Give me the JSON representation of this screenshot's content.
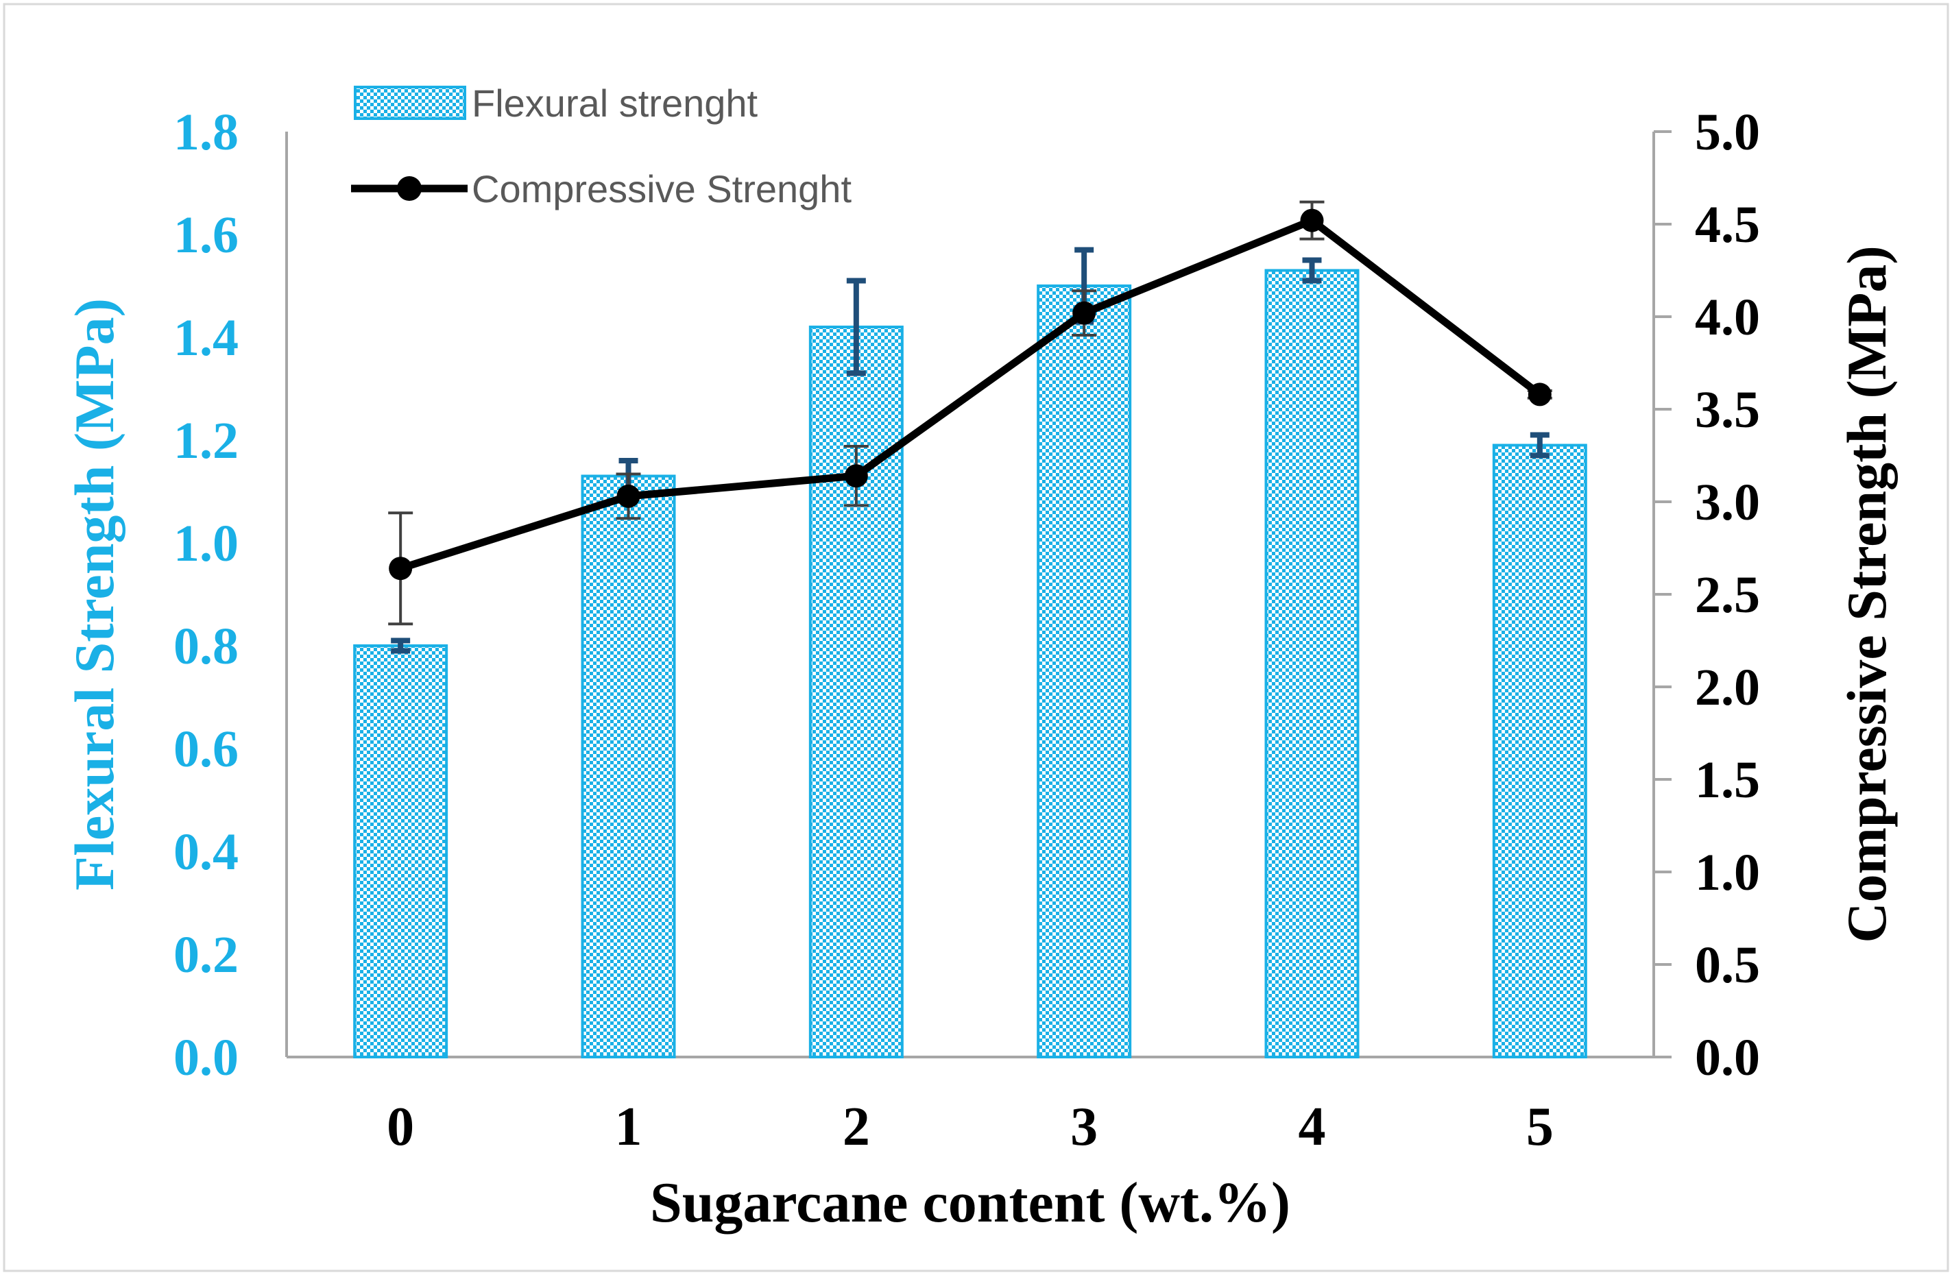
{
  "chart_data": {
    "type": "bar",
    "categories": [
      "0",
      "1",
      "2",
      "3",
      "4",
      "5"
    ],
    "xlabel": "Sugarcane content (wt.%)",
    "series": [
      {
        "name": "Flexural strenght",
        "kind": "bar",
        "axis": "left",
        "values": [
          0.8,
          1.13,
          1.42,
          1.5,
          1.53,
          1.19
        ],
        "errors": [
          0.01,
          0.03,
          0.09,
          0.07,
          0.02,
          0.02
        ],
        "color": "#1ab0e6"
      },
      {
        "name": "Compressive Strenght",
        "kind": "line",
        "axis": "right",
        "values": [
          2.64,
          3.03,
          3.14,
          4.02,
          4.52,
          3.58
        ],
        "errors": [
          0.3,
          0.12,
          0.16,
          0.12,
          0.1,
          0.02
        ],
        "color": "#000000"
      }
    ],
    "y_left": {
      "label": "Flexural Strength (MPa)",
      "ylim": [
        0,
        1.8
      ],
      "ticks": [
        "0.0",
        "0.2",
        "0.4",
        "0.6",
        "0.8",
        "1.0",
        "1.2",
        "1.4",
        "1.6",
        "1.8"
      ],
      "color": "#1ab0e6"
    },
    "y_right": {
      "label": "Compressive Strength (MPa)",
      "ylim": [
        0,
        5.0
      ],
      "ticks": [
        "0.0",
        "0.5",
        "1.0",
        "1.5",
        "2.0",
        "2.5",
        "3.0",
        "3.5",
        "4.0",
        "4.5",
        "5.0"
      ],
      "color": "#000000"
    },
    "legend": "top-left",
    "grid": false,
    "bar_error_color": "#1f4e79",
    "line_error_color": "#404040",
    "axis_color": "#a6a6a6"
  }
}
